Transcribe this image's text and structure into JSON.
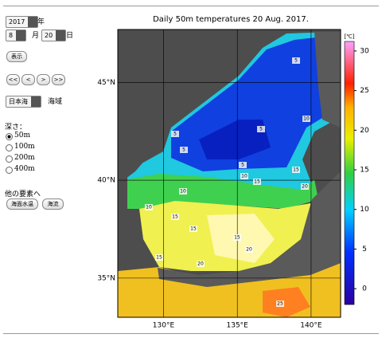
{
  "form": {
    "year": "2017",
    "year_unit": "年",
    "month": "8",
    "month_unit": "月",
    "day": "20",
    "day_unit": "日",
    "show_button": "表示",
    "nav_buttons": [
      "<<",
      "<",
      ">",
      ">>"
    ],
    "region": "日本海",
    "region_unit": "海域",
    "depth_label": "深さ：",
    "depth_options": [
      "50m",
      "100m",
      "200m",
      "400m"
    ],
    "selected_depth_index": 0,
    "other_label": "他の要素へ",
    "other_buttons": [
      "海面水温",
      "海流"
    ]
  },
  "chart_data": {
    "type": "map",
    "title": "Daily 50m temperatures 20 Aug. 2017.",
    "xlim": [
      126.9,
      142
    ],
    "xticks": [
      {
        "value": 130,
        "label": "130°E"
      },
      {
        "value": 135,
        "label": "135°E"
      },
      {
        "value": 140,
        "label": "140°E"
      }
    ],
    "ylim": [
      33,
      47.7
    ],
    "yticks": [
      {
        "value": 35,
        "label": "35°N"
      },
      {
        "value": 40,
        "label": "40°N"
      },
      {
        "value": 45,
        "label": "45°N"
      }
    ],
    "colorbar": {
      "label": "[℃]",
      "lim": [
        -2,
        31.2
      ],
      "ticks": [
        0,
        5,
        10,
        15,
        20,
        25,
        30
      ]
    },
    "contour_labels": [
      5,
      10,
      5,
      5,
      5,
      5,
      10,
      15,
      20,
      10,
      15,
      10,
      15,
      15,
      15,
      20,
      15,
      20,
      25
    ]
  }
}
